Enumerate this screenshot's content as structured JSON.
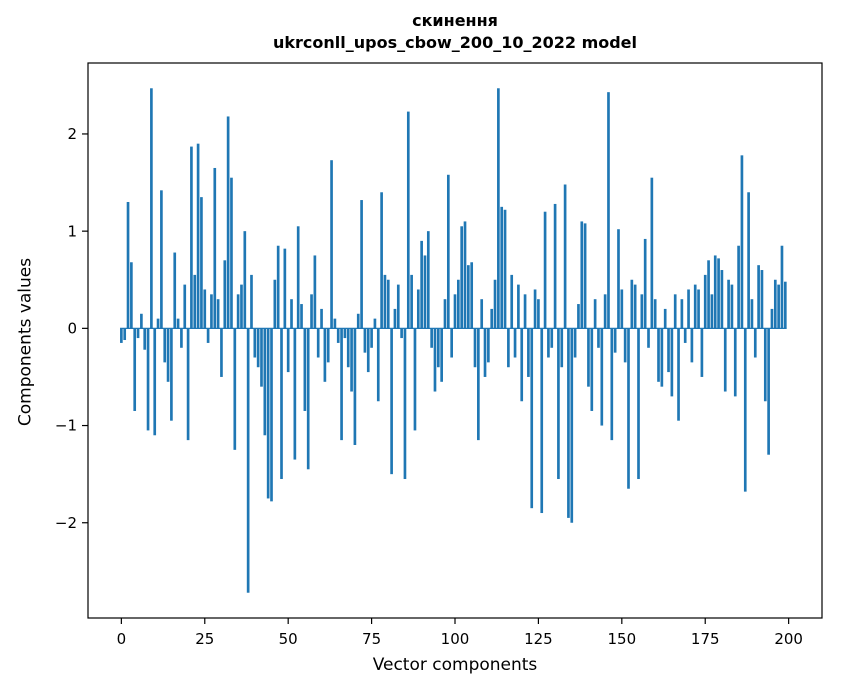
{
  "chart_data": {
    "type": "bar",
    "title": "скинення",
    "subtitle": "ukrconll_upos_cbow_200_10_2022 model",
    "xlabel": "Vector components",
    "ylabel": "Components values",
    "bar_color": "#1f77b4",
    "axis_color": "#000000",
    "background_color": "#ffffff",
    "xlim": [
      -10,
      210
    ],
    "ylim": [
      -2.98,
      2.73
    ],
    "xticks": [
      0,
      25,
      50,
      75,
      100,
      125,
      150,
      175,
      200
    ],
    "yticks": [
      -2,
      -1,
      0,
      1,
      2
    ],
    "grid": false,
    "legend": "none",
    "bar_width_units": 0.8,
    "values": [
      -0.15,
      -0.12,
      1.3,
      0.68,
      -0.85,
      -0.1,
      0.15,
      -0.22,
      -1.05,
      2.47,
      -1.1,
      0.1,
      1.42,
      -0.35,
      -0.55,
      -0.95,
      0.78,
      0.1,
      -0.2,
      0.45,
      -1.15,
      1.87,
      0.55,
      1.9,
      1.35,
      0.4,
      -0.15,
      0.35,
      1.65,
      0.3,
      -0.5,
      0.7,
      2.18,
      1.55,
      -1.25,
      0.35,
      0.45,
      1.0,
      -2.72,
      0.55,
      -0.3,
      -0.4,
      -0.6,
      -1.1,
      -1.75,
      -1.78,
      0.5,
      0.85,
      -1.55,
      0.82,
      -0.45,
      0.3,
      -1.35,
      1.05,
      0.25,
      -0.85,
      -1.45,
      0.35,
      0.75,
      -0.3,
      0.2,
      -0.55,
      -0.35,
      1.73,
      0.1,
      -0.15,
      -1.15,
      -0.1,
      -0.4,
      -0.65,
      -1.2,
      0.15,
      1.32,
      -0.25,
      -0.45,
      -0.2,
      0.1,
      -0.75,
      1.4,
      0.55,
      0.5,
      -1.5,
      0.2,
      0.45,
      -0.1,
      -1.55,
      2.23,
      0.55,
      -1.05,
      0.4,
      0.9,
      0.75,
      1.0,
      -0.2,
      -0.65,
      -0.4,
      -0.55,
      0.3,
      1.58,
      -0.3,
      0.35,
      0.5,
      1.05,
      1.1,
      0.65,
      0.68,
      -0.4,
      -1.15,
      0.3,
      -0.5,
      -0.35,
      0.2,
      0.5,
      2.47,
      1.25,
      1.22,
      -0.4,
      0.55,
      -0.3,
      0.45,
      -0.75,
      0.35,
      -0.5,
      -1.85,
      0.4,
      0.3,
      -1.9,
      1.2,
      -0.3,
      -0.2,
      1.28,
      -1.55,
      -0.4,
      1.48,
      -1.95,
      -2.0,
      -0.3,
      0.25,
      1.1,
      1.08,
      -0.6,
      -0.85,
      0.3,
      -0.2,
      -1.0,
      0.35,
      2.43,
      -1.15,
      -0.25,
      1.02,
      0.4,
      -0.35,
      -1.65,
      0.5,
      0.45,
      -1.55,
      0.35,
      0.92,
      -0.2,
      1.55,
      0.3,
      -0.55,
      -0.6,
      0.2,
      -0.45,
      -0.7,
      0.35,
      -0.95,
      0.3,
      -0.15,
      0.4,
      -0.35,
      0.45,
      0.4,
      -0.5,
      0.55,
      0.7,
      0.35,
      0.75,
      0.72,
      0.6,
      -0.65,
      0.5,
      0.45,
      -0.7,
      0.85,
      1.78,
      -1.68,
      1.4,
      0.3,
      -0.3,
      0.65,
      0.6,
      -0.75,
      -1.3,
      0.2,
      0.5,
      0.45,
      0.85,
      0.48
    ]
  }
}
